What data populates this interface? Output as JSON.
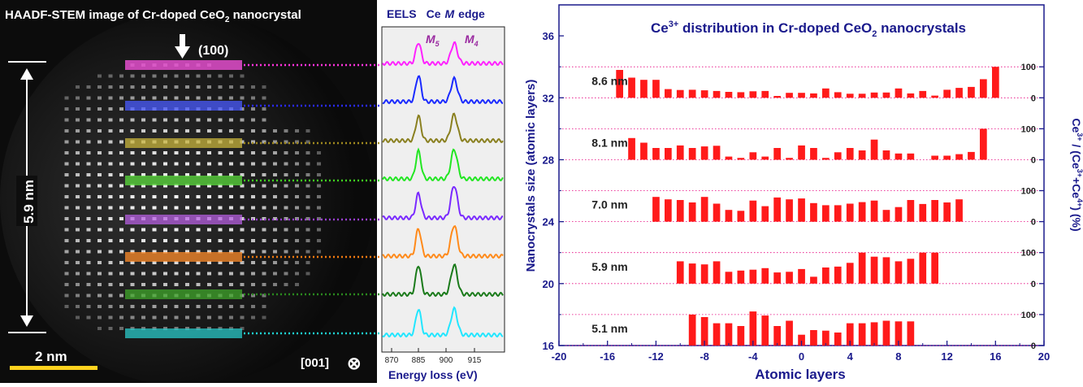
{
  "stem": {
    "title": "HAADF-STEM   image of Cr-doped CeO",
    "title_sub": "2",
    "title_tail": " nanocrystal",
    "direction_label": "(100)",
    "scale_label": "5.9 nm",
    "scalebar_label": "2 nm",
    "zone_label": "[001]",
    "zone_symbol": "⊗",
    "highlight_colors": [
      "#ff55e6",
      "#4a5bff",
      "#c8b43c",
      "#5bdc3c",
      "#b65fe0",
      "#ff8c2a",
      "#3fa52a",
      "#2ac8c8"
    ],
    "dot_colors": [
      "#ff33dd",
      "#2a2aff",
      "#a08a1e",
      "#3fd21e",
      "#9a3fd2",
      "#f07a10",
      "#2a8a1e",
      "#1ed2d2"
    ]
  },
  "eels": {
    "title_a": "EELS",
    "title_b": "Ce",
    "title_c": "M",
    "title_d": "edge",
    "peak1": "M",
    "peak1_sub": "5",
    "peak2": "M",
    "peak2_sub": "4",
    "xlabel": "Energy loss (eV)",
    "ticks": [
      "870",
      "885",
      "900",
      "915"
    ],
    "spectrum_colors": [
      "#ff22ff",
      "#1a2aff",
      "#8a8020",
      "#22e622",
      "#7a2aff",
      "#ff8a1a",
      "#1a7a1a",
      "#22e6ff"
    ]
  },
  "chart_data": {
    "type": "bar",
    "title": "Ce",
    "title_sup": "3+",
    "title_rest": " distribution  in Cr-doped CeO",
    "title_sub": "2",
    "title_end": " nanocrystals",
    "xlabel": "Atomic layers",
    "ylabel": "Nanocrystals size (atomic layers)",
    "y2label": "Ce3+ / (Ce3+ + Ce4+) (%)",
    "y2label_parts": [
      "Ce",
      "3+",
      " / (Ce",
      "3+",
      "+Ce",
      "4+",
      ") (%)"
    ],
    "xlim": [
      -20,
      20
    ],
    "ylim": [
      16,
      38
    ],
    "xticks": [
      -20,
      -16,
      -12,
      -8,
      -4,
      0,
      4,
      8,
      12,
      16,
      20
    ],
    "yticks": [
      16,
      20,
      24,
      28,
      32,
      36
    ],
    "y2ticks": [
      "0",
      "100"
    ],
    "bar_color": "#ff1a1a",
    "axis_color": "#1a1a8c",
    "series": [
      {
        "name": "8.6 nm",
        "baseline": 32,
        "x": [
          -15,
          -14,
          -13,
          -12,
          -11,
          -10,
          -9,
          -8,
          -7,
          -6,
          -5,
          -4,
          -3,
          -2,
          -1,
          0,
          1,
          2,
          3,
          4,
          5,
          6,
          7,
          8,
          9,
          10,
          11,
          12,
          13,
          14,
          15,
          16
        ],
        "values": [
          90,
          65,
          58,
          58,
          28,
          25,
          26,
          24,
          22,
          19,
          18,
          21,
          22,
          6,
          16,
          16,
          14,
          30,
          18,
          13,
          13,
          17,
          17,
          30,
          14,
          22,
          7,
          26,
          32,
          35,
          60,
          100
        ]
      },
      {
        "name": "8.1 nm",
        "baseline": 28,
        "x": [
          -14,
          -13,
          -12,
          -11,
          -10,
          -9,
          -8,
          -7,
          -6,
          -5,
          -4,
          -3,
          -2,
          -1,
          0,
          1,
          2,
          3,
          4,
          5,
          6,
          7,
          8,
          9,
          11,
          12,
          13,
          14,
          15
        ],
        "values": [
          70,
          55,
          38,
          38,
          46,
          38,
          43,
          45,
          10,
          6,
          24,
          10,
          38,
          6,
          46,
          38,
          6,
          24,
          38,
          30,
          65,
          30,
          20,
          20,
          13,
          13,
          18,
          25,
          100
        ]
      },
      {
        "name": "7.0 nm",
        "baseline": 24,
        "x": [
          -12,
          -11,
          -10,
          -9,
          -8,
          -7,
          -6,
          -5,
          -4,
          -3,
          -2,
          -1,
          0,
          1,
          2,
          3,
          4,
          5,
          6,
          7,
          8,
          9,
          10,
          11,
          12,
          13
        ],
        "values": [
          80,
          72,
          70,
          62,
          80,
          58,
          38,
          35,
          68,
          50,
          78,
          72,
          75,
          60,
          53,
          53,
          58,
          63,
          68,
          38,
          47,
          70,
          57,
          70,
          62,
          72
        ]
      },
      {
        "name": "5.9 nm",
        "baseline": 20,
        "x": [
          -10,
          -9,
          -8,
          -7,
          -6,
          -5,
          -4,
          -3,
          -2,
          -1,
          0,
          1,
          2,
          3,
          4,
          5,
          6,
          7,
          8,
          9,
          10,
          11
        ],
        "values": [
          72,
          65,
          62,
          72,
          38,
          42,
          45,
          50,
          36,
          38,
          47,
          22,
          52,
          55,
          67,
          100,
          87,
          85,
          72,
          80,
          100,
          100
        ]
      },
      {
        "name": "5.1 nm",
        "baseline": 16,
        "x": [
          -9,
          -8,
          -7,
          -6,
          -5,
          -4,
          -3,
          -2,
          -1,
          0,
          1,
          2,
          3,
          4,
          5,
          6,
          7,
          8,
          9
        ],
        "values": [
          100,
          92,
          72,
          72,
          63,
          110,
          97,
          63,
          80,
          35,
          50,
          48,
          42,
          72,
          72,
          75,
          80,
          78,
          78
        ]
      }
    ]
  }
}
